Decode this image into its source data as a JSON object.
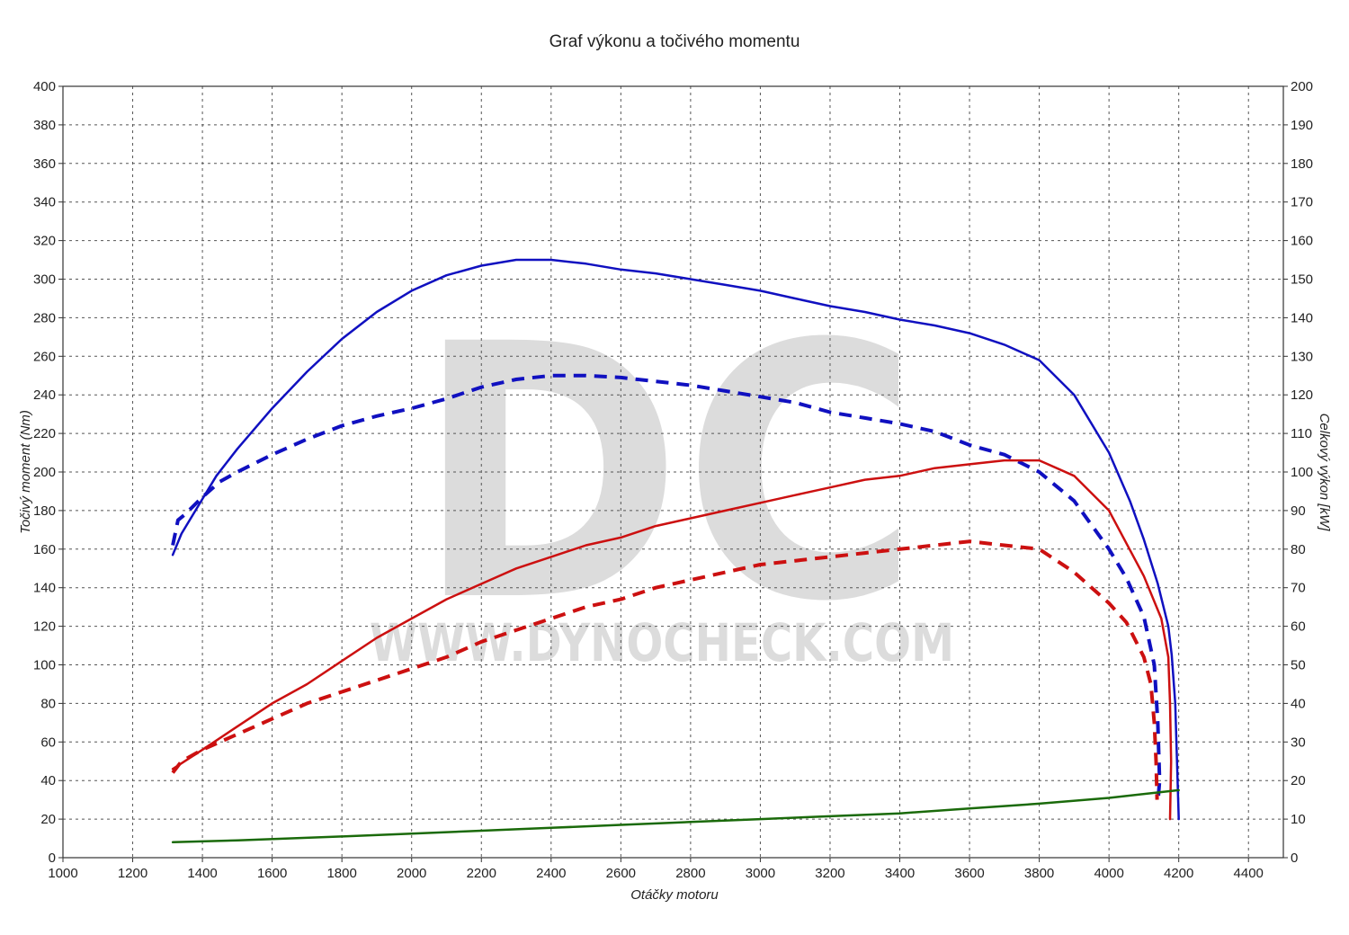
{
  "chart_data": {
    "type": "line",
    "title": "Graf výkonu a točivého momentu",
    "xlabel": "Otáčky motoru",
    "ylabel_left": "Točivý moment (Nm)",
    "ylabel_right": "Celkový výkon [kW]",
    "xlim": [
      1000,
      4500
    ],
    "ylim_left": [
      0,
      400
    ],
    "ylim_right": [
      0,
      200
    ],
    "x_ticks": [
      1000,
      1200,
      1400,
      1600,
      1800,
      2000,
      2200,
      2400,
      2600,
      2800,
      3000,
      3200,
      3400,
      3600,
      3800,
      4000,
      4200,
      4400
    ],
    "y_left_ticks": [
      0,
      20,
      40,
      60,
      80,
      100,
      120,
      140,
      160,
      180,
      200,
      220,
      240,
      260,
      280,
      300,
      320,
      340,
      360,
      380,
      400
    ],
    "y_right_ticks": [
      0,
      10,
      20,
      30,
      40,
      50,
      60,
      70,
      80,
      90,
      100,
      110,
      120,
      130,
      140,
      150,
      160,
      170,
      180,
      190,
      200
    ],
    "grid": true,
    "watermark": {
      "letters": "DC",
      "url": "WWW.DYNOCHECK.COM"
    },
    "series": [
      {
        "color": "#1010c0",
        "dash": "solid",
        "axis": "left",
        "points": [
          [
            1315,
            157
          ],
          [
            1340,
            168
          ],
          [
            1400,
            186
          ],
          [
            1440,
            198
          ],
          [
            1500,
            212
          ],
          [
            1600,
            233
          ],
          [
            1700,
            252
          ],
          [
            1800,
            269
          ],
          [
            1900,
            283
          ],
          [
            2000,
            294
          ],
          [
            2100,
            302
          ],
          [
            2200,
            307
          ],
          [
            2300,
            310
          ],
          [
            2400,
            310
          ],
          [
            2500,
            308
          ],
          [
            2600,
            305
          ],
          [
            2700,
            303
          ],
          [
            2800,
            300
          ],
          [
            2900,
            297
          ],
          [
            3000,
            294
          ],
          [
            3100,
            290
          ],
          [
            3200,
            286
          ],
          [
            3300,
            283
          ],
          [
            3400,
            279
          ],
          [
            3500,
            276
          ],
          [
            3600,
            272
          ],
          [
            3700,
            266
          ],
          [
            3800,
            258
          ],
          [
            3900,
            240
          ],
          [
            4000,
            210
          ],
          [
            4060,
            185
          ],
          [
            4100,
            165
          ],
          [
            4140,
            142
          ],
          [
            4170,
            120
          ],
          [
            4180,
            105
          ],
          [
            4190,
            80
          ],
          [
            4200,
            20
          ]
        ]
      },
      {
        "color": "#1010c0",
        "dash": "dashed",
        "axis": "left",
        "points": [
          [
            1315,
            162
          ],
          [
            1330,
            175
          ],
          [
            1350,
            178
          ],
          [
            1400,
            187
          ],
          [
            1450,
            195
          ],
          [
            1500,
            200
          ],
          [
            1600,
            209
          ],
          [
            1700,
            217
          ],
          [
            1800,
            224
          ],
          [
            1900,
            229
          ],
          [
            2000,
            233
          ],
          [
            2100,
            238
          ],
          [
            2200,
            244
          ],
          [
            2300,
            248
          ],
          [
            2400,
            250
          ],
          [
            2500,
            250
          ],
          [
            2600,
            249
          ],
          [
            2700,
            247
          ],
          [
            2800,
            245
          ],
          [
            2900,
            242
          ],
          [
            3000,
            239
          ],
          [
            3100,
            236
          ],
          [
            3200,
            231
          ],
          [
            3300,
            228
          ],
          [
            3400,
            225
          ],
          [
            3500,
            221
          ],
          [
            3600,
            214
          ],
          [
            3700,
            209
          ],
          [
            3800,
            200
          ],
          [
            3900,
            185
          ],
          [
            4000,
            160
          ],
          [
            4050,
            145
          ],
          [
            4100,
            125
          ],
          [
            4130,
            100
          ],
          [
            4140,
            70
          ],
          [
            4145,
            40
          ],
          [
            4140,
            28
          ]
        ]
      },
      {
        "color": "#cc1010",
        "dash": "solid",
        "axis": "right",
        "points": [
          [
            1315,
            23
          ],
          [
            1400,
            28
          ],
          [
            1500,
            34
          ],
          [
            1600,
            40
          ],
          [
            1700,
            45
          ],
          [
            1800,
            51
          ],
          [
            1900,
            57
          ],
          [
            2000,
            62
          ],
          [
            2100,
            67
          ],
          [
            2200,
            71
          ],
          [
            2300,
            75
          ],
          [
            2400,
            78
          ],
          [
            2500,
            81
          ],
          [
            2600,
            83
          ],
          [
            2700,
            86
          ],
          [
            2800,
            88
          ],
          [
            2900,
            90
          ],
          [
            3000,
            92
          ],
          [
            3100,
            94
          ],
          [
            3200,
            96
          ],
          [
            3300,
            98
          ],
          [
            3400,
            99
          ],
          [
            3500,
            101
          ],
          [
            3600,
            102
          ],
          [
            3700,
            103
          ],
          [
            3800,
            103
          ],
          [
            3900,
            99
          ],
          [
            4000,
            90
          ],
          [
            4100,
            73
          ],
          [
            4150,
            62
          ],
          [
            4170,
            52
          ],
          [
            4175,
            40
          ],
          [
            4178,
            25
          ],
          [
            4175,
            10
          ]
        ]
      },
      {
        "color": "#cc1010",
        "dash": "dashed",
        "axis": "right",
        "points": [
          [
            1315,
            22
          ],
          [
            1340,
            25
          ],
          [
            1400,
            28
          ],
          [
            1500,
            32
          ],
          [
            1600,
            36
          ],
          [
            1700,
            40
          ],
          [
            1800,
            43
          ],
          [
            1900,
            46
          ],
          [
            2000,
            49
          ],
          [
            2100,
            52
          ],
          [
            2200,
            56
          ],
          [
            2300,
            59
          ],
          [
            2400,
            62
          ],
          [
            2500,
            65
          ],
          [
            2600,
            67
          ],
          [
            2700,
            70
          ],
          [
            2800,
            72
          ],
          [
            2900,
            74
          ],
          [
            3000,
            76
          ],
          [
            3100,
            77
          ],
          [
            3200,
            78
          ],
          [
            3300,
            79
          ],
          [
            3400,
            80
          ],
          [
            3500,
            81
          ],
          [
            3600,
            82
          ],
          [
            3700,
            81
          ],
          [
            3800,
            80
          ],
          [
            3900,
            74
          ],
          [
            4000,
            66
          ],
          [
            4050,
            61
          ],
          [
            4100,
            52
          ],
          [
            4120,
            45
          ],
          [
            4130,
            35
          ],
          [
            4135,
            25
          ],
          [
            4138,
            15
          ]
        ]
      },
      {
        "color": "#1a6a0a",
        "dash": "solid",
        "axis": "left",
        "points": [
          [
            1315,
            8
          ],
          [
            1500,
            9
          ],
          [
            1800,
            11
          ],
          [
            2000,
            12.5
          ],
          [
            2200,
            14
          ],
          [
            2400,
            15.5
          ],
          [
            2600,
            17
          ],
          [
            2800,
            18.5
          ],
          [
            3000,
            20
          ],
          [
            3200,
            21.5
          ],
          [
            3400,
            23
          ],
          [
            3600,
            25.5
          ],
          [
            3800,
            28
          ],
          [
            4000,
            31
          ],
          [
            4200,
            35
          ]
        ]
      }
    ]
  }
}
